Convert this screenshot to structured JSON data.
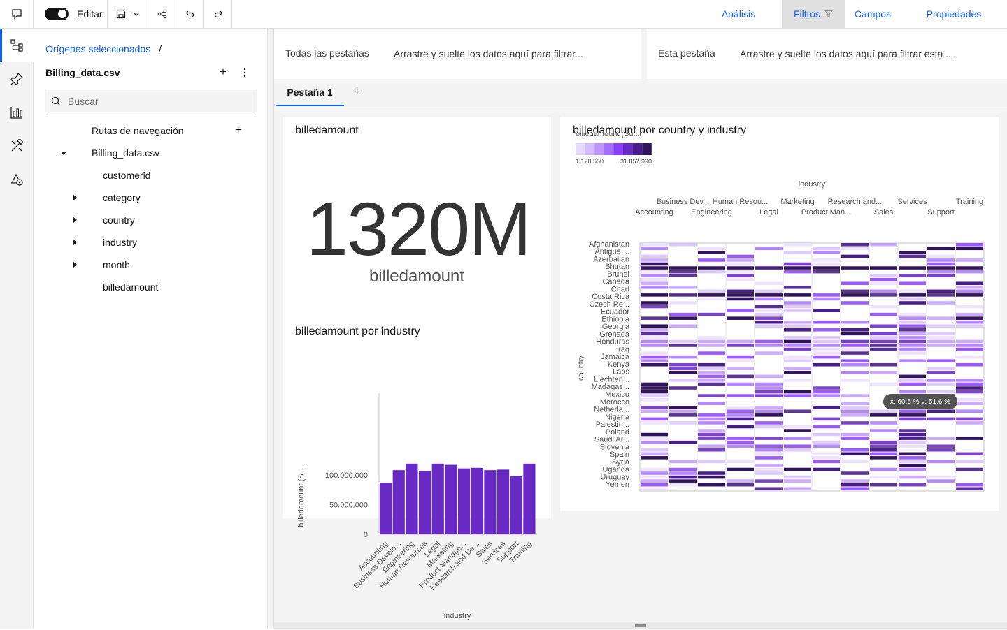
{
  "toolbar": {
    "edit_label": "Editar",
    "tabs": [
      "Análisis",
      "Filtros",
      "Campos",
      "Propiedades"
    ],
    "active_tab": "Filtros"
  },
  "sources": {
    "breadcrumb_link": "Orígenes seleccionados",
    "breadcrumb_sep": "/",
    "title": "Billing_data.csv",
    "search_placeholder": "Buscar",
    "tree": [
      {
        "label": "Rutas de navegación",
        "kind": "header"
      },
      {
        "label": "Billing_data.csv",
        "kind": "folder-open"
      },
      {
        "label": "customerid",
        "kind": "leaf"
      },
      {
        "label": "category",
        "kind": "collapsed"
      },
      {
        "label": "country",
        "kind": "collapsed"
      },
      {
        "label": "industry",
        "kind": "collapsed"
      },
      {
        "label": "month",
        "kind": "collapsed"
      },
      {
        "label": "billedamount",
        "kind": "leaf"
      }
    ]
  },
  "filters": {
    "all_tabs_label": "Todas las pestañas",
    "all_tabs_placeholder": "Arrastre y suelte los datos aquí para filtrar...",
    "this_tab_label": "Esta pestaña",
    "this_tab_placeholder": "Arrastre y suelte los datos aquí para filtrar esta ..."
  },
  "tabs": {
    "active": "Pestaña 1",
    "add_symbol": "+"
  },
  "kpi": {
    "title": "billedamount",
    "value": "1320M",
    "caption": "billedamount"
  },
  "tooltip": "x: 60,5 %  y: 51,6 %",
  "colors": {
    "accent": "#0f62fe",
    "bar": "#6929c4",
    "heat_low": "#e8daff",
    "heat_high": "#31135e"
  },
  "chart_data": [
    {
      "type": "bar",
      "title": "billedamount por industry",
      "xlabel": "industry",
      "ylabel": "billedamount (S...",
      "categories": [
        "Accounting",
        "Business Develo...",
        "Engineering",
        "Human Resources",
        "Legal",
        "Marketing",
        "Product Manage...",
        "Research and De...",
        "Sales",
        "Services",
        "Support",
        "Training"
      ],
      "values": [
        87000000,
        108000000,
        119000000,
        107000000,
        119000000,
        117000000,
        111000000,
        112000000,
        108000000,
        109000000,
        98000000,
        119000000
      ],
      "yticks": [
        {
          "value": 0,
          "label": "0"
        },
        {
          "value": 50000000,
          "label": "50.000.000"
        },
        {
          "value": 100000000,
          "label": "100.000.000"
        }
      ],
      "ylim": [
        0,
        120000000
      ]
    },
    {
      "type": "heatmap",
      "title": "billedamount por country y industry",
      "legend_title": "billedamount (Su...",
      "legend_min": "1.128.550",
      "legend_max": "31.852.990",
      "xlabel": "industry",
      "ylabel": "country",
      "x_categories": [
        "Accounting",
        "Business Dev...",
        "Engineering",
        "Human Resou...",
        "Legal",
        "Marketing",
        "Product Man...",
        "Research and...",
        "Sales",
        "Services",
        "Support",
        "Training"
      ],
      "y_labels": [
        "Afghanistan",
        "Antigua ...",
        "Azerbaijan",
        "Bhutan",
        "Brunei",
        "Canada",
        "Chad",
        "Costa Rica",
        "Czech Re...",
        "Ecuador",
        "Ethiopia",
        "Georgia",
        "Grenada",
        "Honduras",
        "Iraq",
        "Jamaica",
        "Kenya",
        "Laos",
        "Liechten...",
        "Madagas...",
        "Mexico",
        "Morocco",
        "Netherla...",
        "Nigeria",
        "Palestin...",
        "Poland",
        "Saudi Ar...",
        "Slovenia",
        "Spain",
        "Syria",
        "Uganda",
        "Uruguay",
        "Yemen"
      ],
      "row_count": 64
    }
  ]
}
